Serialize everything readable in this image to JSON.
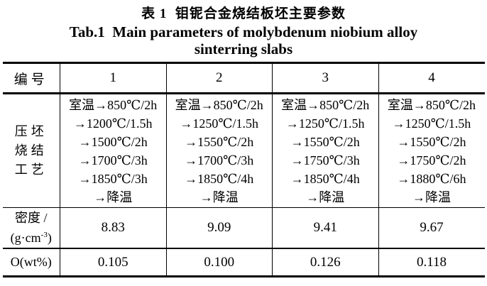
{
  "colors": {
    "text": "#000000",
    "background": "#ffffff",
    "border": "#000000"
  },
  "caption": {
    "zh": "表 1  钼铌合金烧结板坯主要参数",
    "en_line1": "Tab.1  Main parameters of molybdenum niobium alloy",
    "en_line2": "sinterring slabs"
  },
  "table": {
    "header": {
      "label": "编号",
      "columns": [
        "1",
        "2",
        "3",
        "4"
      ]
    },
    "process": {
      "label_lines": [
        "压坯",
        "烧结",
        "工艺"
      ],
      "cells": [
        [
          "室温→850℃/2h",
          "→1200℃/1.5h",
          "→1500℃/2h",
          "→1700℃/3h",
          "→1850℃/3h",
          "→降温"
        ],
        [
          "室温→850℃/2h",
          "→1250℃/1.5h",
          "→1550℃/2h",
          "→1700℃/3h",
          "→1850℃/4h",
          "→降温"
        ],
        [
          "室温→850℃/2h",
          "→1250℃/1.5h",
          "→1550℃/2h",
          "→1750℃/3h",
          "→1850℃/4h",
          "→降温"
        ],
        [
          "室温→850℃/2h",
          "→1250℃/1.5h",
          "→1550℃/2h",
          "→1750℃/2h",
          "→1880℃/6h",
          "→降温"
        ]
      ]
    },
    "density": {
      "label_line1": "密度 /",
      "label_unit_pre": "(g·cm",
      "label_unit_sup": "-3",
      "label_unit_post": ")",
      "values": [
        "8.83",
        "9.09",
        "9.41",
        "9.67"
      ]
    },
    "oxygen": {
      "label": "O(wt%)",
      "values": [
        "0.105",
        "0.100",
        "0.126",
        "0.118"
      ]
    }
  },
  "chart_data": {
    "type": "table",
    "title_zh": "表 1 钼铌合金烧结板坯主要参数",
    "title_en": "Tab.1 Main parameters of molybdenum niobium alloy sinterring slabs",
    "columns": [
      "编号",
      "1",
      "2",
      "3",
      "4"
    ],
    "rows": [
      [
        "压坯烧结工艺",
        "室温→850℃/2h →1200℃/1.5h →1500℃/2h →1700℃/3h →1850℃/3h →降温",
        "室温→850℃/2h →1250℃/1.5h →1550℃/2h →1700℃/3h →1850℃/4h →降温",
        "室温→850℃/2h →1250℃/1.5h →1550℃/2h →1750℃/3h →1850℃/4h →降温",
        "室温→850℃/2h →1250℃/1.5h →1550℃/2h →1750℃/2h →1880℃/6h →降温"
      ],
      [
        "密度 /(g·cm-3)",
        "8.83",
        "9.09",
        "9.41",
        "9.67"
      ],
      [
        "O(wt%)",
        "0.105",
        "0.100",
        "0.126",
        "0.118"
      ]
    ]
  }
}
